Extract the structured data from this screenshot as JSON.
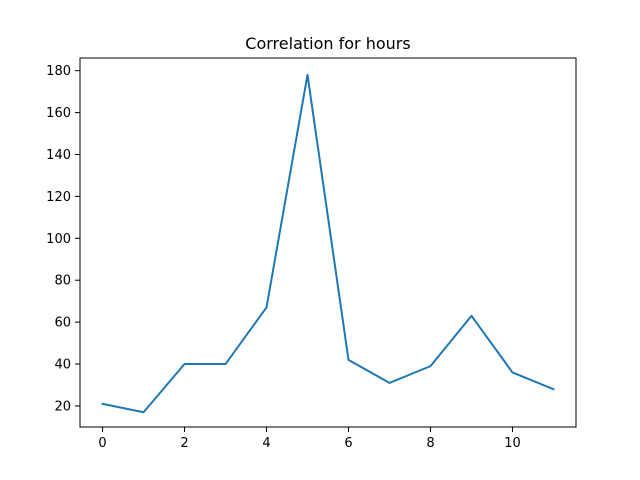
{
  "chart_data": {
    "type": "line",
    "title": "Correlation for hours",
    "xlabel": "",
    "ylabel": "",
    "x": [
      0,
      1,
      2,
      3,
      4,
      5,
      6,
      7,
      8,
      9,
      10,
      11
    ],
    "series": [
      {
        "values": [
          21,
          17,
          40,
          40,
          67,
          178,
          42,
          31,
          39,
          63,
          36,
          28
        ],
        "color": "#1f77b4"
      }
    ],
    "xlim": [
      -0.55,
      11.55
    ],
    "ylim": [
      9.95,
      186.05
    ],
    "xticks": [
      0,
      2,
      4,
      6,
      8,
      10
    ],
    "yticks": [
      20,
      40,
      60,
      80,
      100,
      120,
      140,
      160,
      180
    ],
    "xtick_labels": [
      "0",
      "2",
      "4",
      "6",
      "8",
      "10"
    ],
    "ytick_labels": [
      "20",
      "40",
      "60",
      "80",
      "100",
      "120",
      "140",
      "160",
      "180"
    ],
    "grid": false,
    "legend": "none"
  }
}
